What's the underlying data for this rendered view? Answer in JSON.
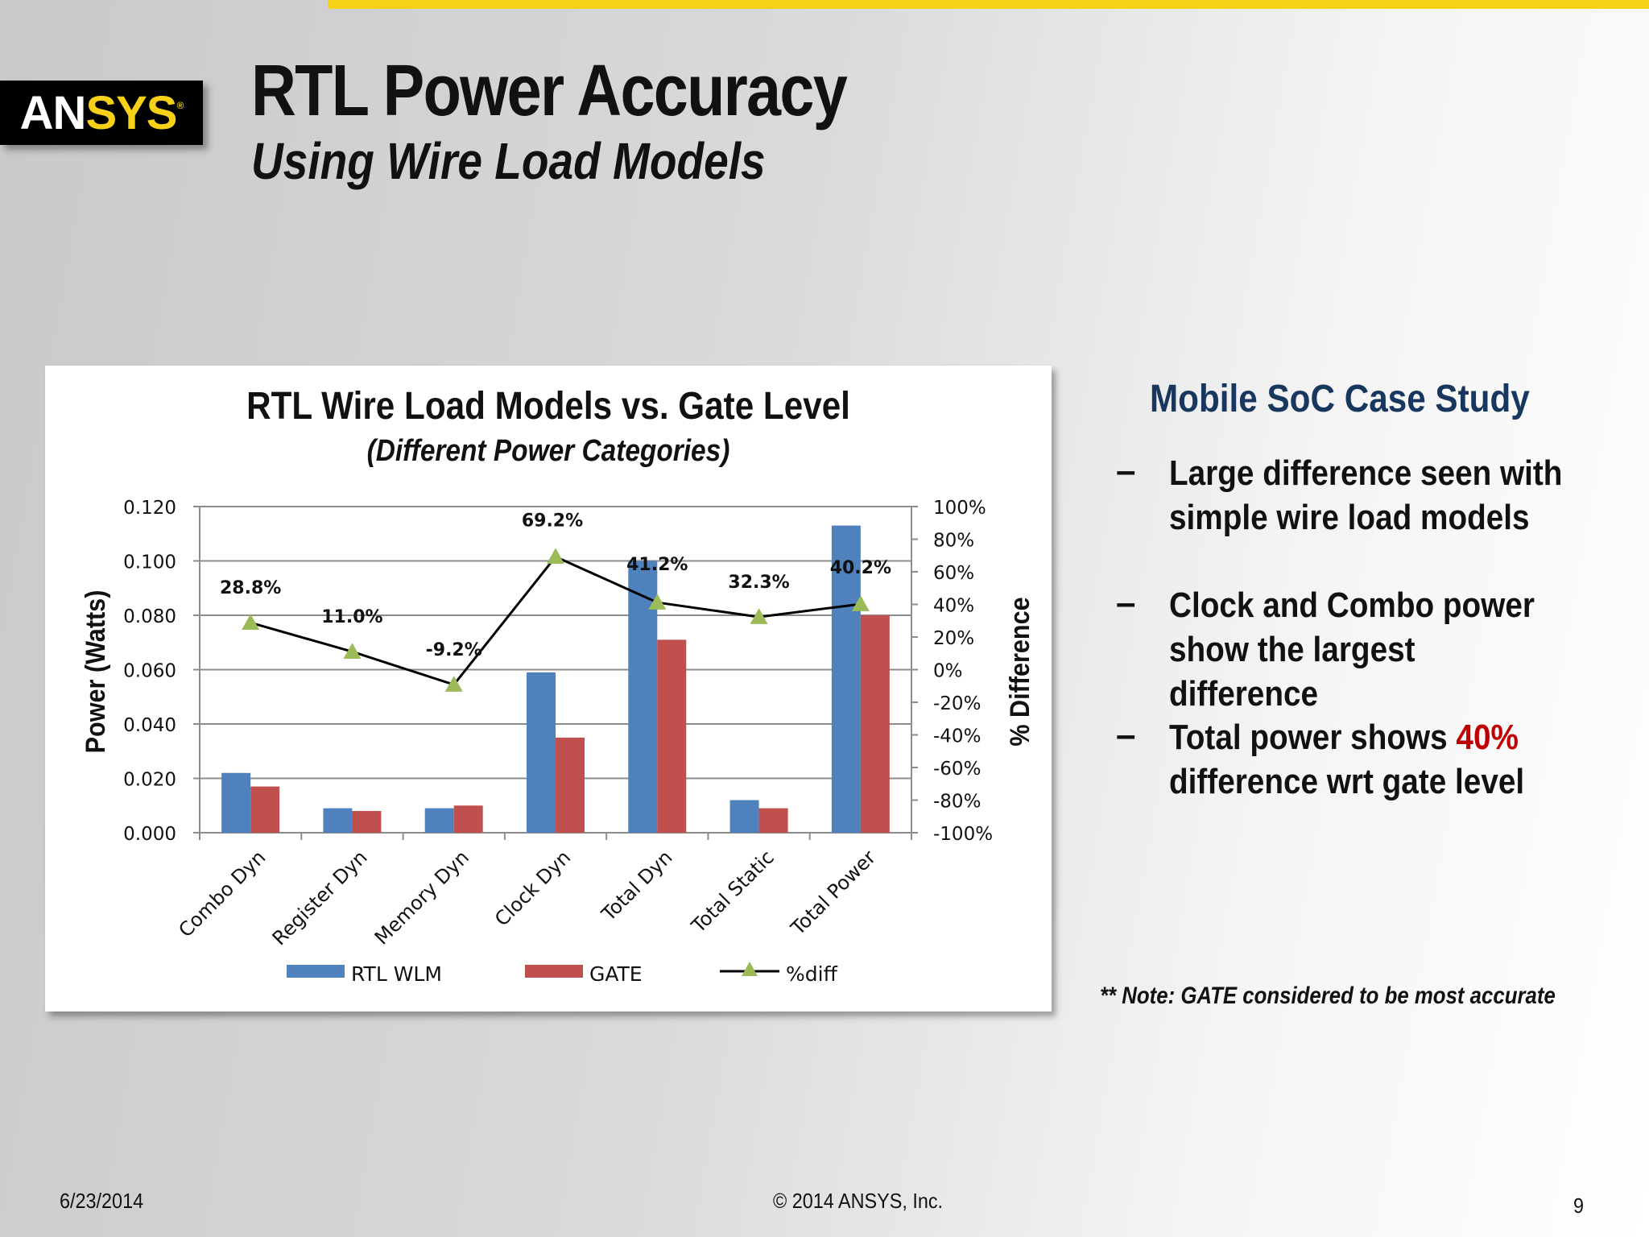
{
  "slide": {
    "title": "RTL Power Accuracy",
    "subtitle": "Using Wire Load Models",
    "logo_text_white": "AN",
    "logo_text_yellow": "SYS",
    "logo_mark": "®",
    "side_heading": "Mobile SoC Case Study",
    "bullets": [
      {
        "dash": "–",
        "text": "Large difference seen with simple wire load models"
      },
      {
        "dash": "–",
        "text": "Clock and Combo power show the largest difference"
      },
      {
        "dash": "–",
        "text_before": "Total power shows ",
        "text_highlight": "40%",
        "text_after": " difference wrt gate level"
      }
    ],
    "note": "** Note: GATE considered to be most accurate",
    "footer_date": "6/23/2014",
    "footer_copyright": "© 2014 ANSYS, Inc.",
    "page_number": "9"
  },
  "colors": {
    "accent_bar": "#f7d117",
    "heading": "#17375e",
    "highlight": "#c00000",
    "rtl_wlm": "#4f81bd",
    "gate": "#c0504d",
    "diff_marker": "#9bbb59",
    "diff_line": "#000000"
  },
  "chart_data": {
    "type": "bar",
    "title": "RTL Wire Load Models vs. Gate Level",
    "subtitle": "(Different Power Categories)",
    "ylabel": "Power (Watts)",
    "y2label": "% Difference",
    "ylim": [
      0,
      0.12
    ],
    "yticks": [
      "0.000",
      "0.020",
      "0.040",
      "0.060",
      "0.080",
      "0.100",
      "0.120"
    ],
    "y2lim": [
      -100,
      100
    ],
    "y2ticks": [
      "-100%",
      "-80%",
      "-60%",
      "-40%",
      "-20%",
      "0%",
      "20%",
      "40%",
      "60%",
      "80%",
      "100%"
    ],
    "grid": true,
    "legend_position": "bottom",
    "categories": [
      "Combo Dyn",
      "Register Dyn",
      "Memory Dyn",
      "Clock Dyn",
      "Total Dyn",
      "Total Static",
      "Total Power"
    ],
    "series": [
      {
        "name": "RTL WLM",
        "axis": "left",
        "values": [
          0.022,
          0.009,
          0.009,
          0.059,
          0.1,
          0.012,
          0.113
        ]
      },
      {
        "name": "GATE",
        "axis": "left",
        "values": [
          0.017,
          0.008,
          0.01,
          0.035,
          0.071,
          0.009,
          0.08
        ]
      },
      {
        "name": "%diff",
        "axis": "right",
        "type": "line",
        "values": [
          28.8,
          11.0,
          -9.2,
          69.2,
          41.2,
          32.3,
          40.2
        ],
        "labels": [
          "28.8%",
          "11.0%",
          "-9.2%",
          "69.2%",
          "41.2%",
          "32.3%",
          "40.2%"
        ]
      }
    ]
  }
}
